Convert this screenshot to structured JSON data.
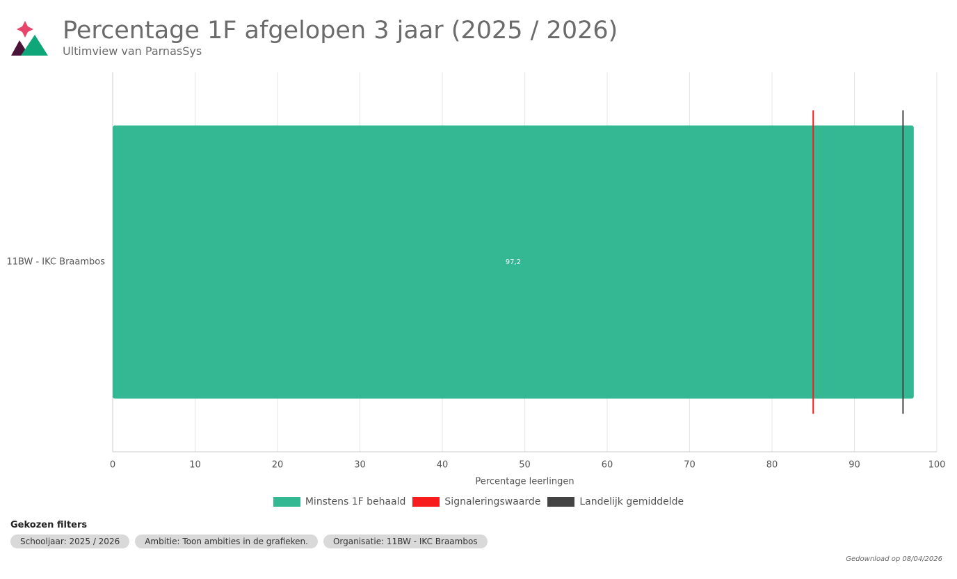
{
  "chart_data": {
    "type": "bar",
    "orientation": "horizontal",
    "title": "Percentage 1F afgelopen 3 jaar (2025 / 2026)",
    "subtitle": "Ultimview van ParnasSys",
    "categories": [
      "11BW - IKC Braambos"
    ],
    "series": [
      {
        "name": "Minstens 1F behaald",
        "color": "#34b894",
        "kind": "bar",
        "values": [
          97.2
        ],
        "value_labels": [
          "97,2"
        ]
      },
      {
        "name": "Signaleringswaarde",
        "color": "#f71d1d",
        "kind": "marker",
        "values": [
          85
        ]
      },
      {
        "name": "Landelijk gemiddelde",
        "color": "#444444",
        "kind": "marker",
        "values": [
          95.9
        ]
      }
    ],
    "x_label": "Percentage leerlingen",
    "xlim": [
      0,
      100
    ],
    "xticks": [
      0,
      10,
      20,
      30,
      40,
      50,
      60,
      70,
      80,
      90,
      100
    ],
    "grid": true
  },
  "filters": {
    "title": "Gekozen filters",
    "items": [
      "Schooljaar: 2025 / 2026",
      "Ambitie: Toon ambities in de grafieken.",
      "Organisatie: 11BW - IKC Braambos"
    ]
  },
  "footer": "Gedownload op 08/04/2026"
}
